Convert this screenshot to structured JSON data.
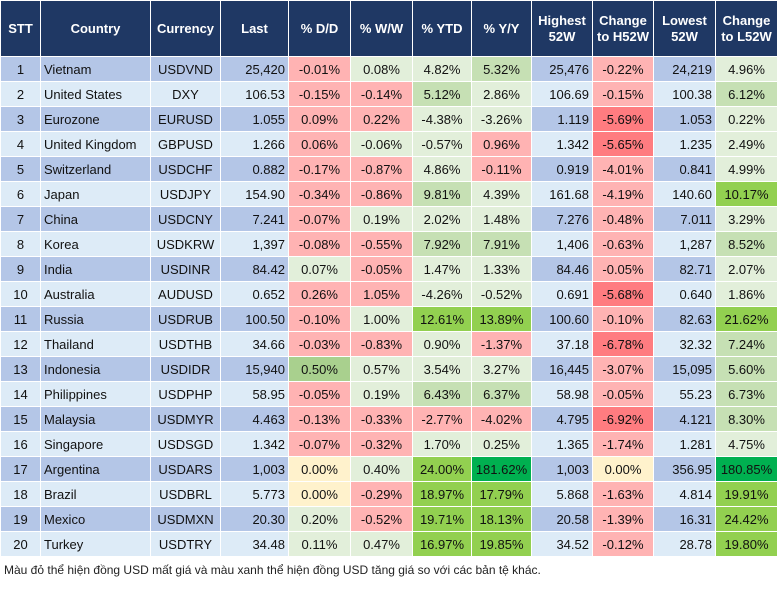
{
  "palette": {
    "odd": "#b4c6e7",
    "even": "#ddebf7",
    "header": "#1f3864",
    "lg": "#e2efda",
    "mg": "#c6e0b4",
    "g2": "#a9d08e",
    "sg": "#92d050",
    "dg": "#00b050",
    "r": "#ffb3b3",
    "dr": "#ff7c80",
    "y": "#fff2cc"
  },
  "chart_data": {
    "type": "table",
    "headers": [
      "STT",
      "Country",
      "Currency",
      "Last",
      "% D/D",
      "% W/W",
      "% YTD",
      "% Y/Y",
      "Highest 52W",
      "Change to H52W",
      "Lowest 52W",
      "Change to L52W"
    ],
    "rows": [
      {
        "stt": "1",
        "country": "Vietnam",
        "currency": "USDVND",
        "last": "25,420",
        "dd": [
          "-0.01%",
          "r"
        ],
        "ww": [
          "0.08%",
          "lg"
        ],
        "ytd": [
          "4.82%",
          "lg"
        ],
        "yy": [
          "5.32%",
          "mg"
        ],
        "high": "25,476",
        "h52": [
          "-0.22%",
          "r"
        ],
        "low": "24,219",
        "l52": [
          "4.96%",
          "lg"
        ]
      },
      {
        "stt": "2",
        "country": "United States",
        "currency": "DXY",
        "last": "106.53",
        "dd": [
          "-0.15%",
          "r"
        ],
        "ww": [
          "-0.14%",
          "r"
        ],
        "ytd": [
          "5.12%",
          "mg"
        ],
        "yy": [
          "2.86%",
          "lg"
        ],
        "high": "106.69",
        "h52": [
          "-0.15%",
          "r"
        ],
        "low": "100.38",
        "l52": [
          "6.12%",
          "mg"
        ]
      },
      {
        "stt": "3",
        "country": "Eurozone",
        "currency": "EURUSD",
        "last": "1.055",
        "dd": [
          "0.09%",
          "r"
        ],
        "ww": [
          "0.22%",
          "r"
        ],
        "ytd": [
          "-4.38%",
          "lg"
        ],
        "yy": [
          "-3.26%",
          "lg"
        ],
        "high": "1.119",
        "h52": [
          "-5.69%",
          "dr"
        ],
        "low": "1.053",
        "l52": [
          "0.22%",
          "lg"
        ]
      },
      {
        "stt": "4",
        "country": "United Kingdom",
        "currency": "GBPUSD",
        "last": "1.266",
        "dd": [
          "0.06%",
          "r"
        ],
        "ww": [
          "-0.06%",
          "lg"
        ],
        "ytd": [
          "-0.57%",
          "lg"
        ],
        "yy": [
          "0.96%",
          "r"
        ],
        "high": "1.342",
        "h52": [
          "-5.65%",
          "dr"
        ],
        "low": "1.235",
        "l52": [
          "2.49%",
          "lg"
        ]
      },
      {
        "stt": "5",
        "country": "Switzerland",
        "currency": "USDCHF",
        "last": "0.882",
        "dd": [
          "-0.17%",
          "r"
        ],
        "ww": [
          "-0.87%",
          "r"
        ],
        "ytd": [
          "4.86%",
          "lg"
        ],
        "yy": [
          "-0.11%",
          "r"
        ],
        "high": "0.919",
        "h52": [
          "-4.01%",
          "r"
        ],
        "low": "0.841",
        "l52": [
          "4.99%",
          "lg"
        ]
      },
      {
        "stt": "6",
        "country": "Japan",
        "currency": "USDJPY",
        "last": "154.90",
        "dd": [
          "-0.34%",
          "r"
        ],
        "ww": [
          "-0.86%",
          "r"
        ],
        "ytd": [
          "9.81%",
          "mg"
        ],
        "yy": [
          "4.39%",
          "lg"
        ],
        "high": "161.68",
        "h52": [
          "-4.19%",
          "r"
        ],
        "low": "140.60",
        "l52": [
          "10.17%",
          "sg"
        ]
      },
      {
        "stt": "7",
        "country": "China",
        "currency": "USDCNY",
        "last": "7.241",
        "dd": [
          "-0.07%",
          "r"
        ],
        "ww": [
          "0.19%",
          "lg"
        ],
        "ytd": [
          "2.02%",
          "lg"
        ],
        "yy": [
          "1.48%",
          "lg"
        ],
        "high": "7.276",
        "h52": [
          "-0.48%",
          "r"
        ],
        "low": "7.011",
        "l52": [
          "3.29%",
          "lg"
        ]
      },
      {
        "stt": "8",
        "country": "Korea",
        "currency": "USDKRW",
        "last": "1,397",
        "dd": [
          "-0.08%",
          "r"
        ],
        "ww": [
          "-0.55%",
          "r"
        ],
        "ytd": [
          "7.92%",
          "mg"
        ],
        "yy": [
          "7.91%",
          "mg"
        ],
        "high": "1,406",
        "h52": [
          "-0.63%",
          "r"
        ],
        "low": "1,287",
        "l52": [
          "8.52%",
          "mg"
        ]
      },
      {
        "stt": "9",
        "country": "India",
        "currency": "USDINR",
        "last": "84.42",
        "dd": [
          "0.07%",
          "lg"
        ],
        "ww": [
          "-0.05%",
          "r"
        ],
        "ytd": [
          "1.47%",
          "lg"
        ],
        "yy": [
          "1.33%",
          "lg"
        ],
        "high": "84.46",
        "h52": [
          "-0.05%",
          "r"
        ],
        "low": "82.71",
        "l52": [
          "2.07%",
          "lg"
        ]
      },
      {
        "stt": "10",
        "country": "Australia",
        "currency": "AUDUSD",
        "last": "0.652",
        "dd": [
          "0.26%",
          "r"
        ],
        "ww": [
          "1.05%",
          "r"
        ],
        "ytd": [
          "-4.26%",
          "lg"
        ],
        "yy": [
          "-0.52%",
          "lg"
        ],
        "high": "0.691",
        "h52": [
          "-5.68%",
          "dr"
        ],
        "low": "0.640",
        "l52": [
          "1.86%",
          "lg"
        ]
      },
      {
        "stt": "11",
        "country": "Russia",
        "currency": "USDRUB",
        "last": "100.50",
        "dd": [
          "-0.10%",
          "r"
        ],
        "ww": [
          "1.00%",
          "lg"
        ],
        "ytd": [
          "12.61%",
          "sg"
        ],
        "yy": [
          "13.89%",
          "sg"
        ],
        "high": "100.60",
        "h52": [
          "-0.10%",
          "r"
        ],
        "low": "82.63",
        "l52": [
          "21.62%",
          "sg"
        ]
      },
      {
        "stt": "12",
        "country": "Thailand",
        "currency": "USDTHB",
        "last": "34.66",
        "dd": [
          "-0.03%",
          "r"
        ],
        "ww": [
          "-0.83%",
          "r"
        ],
        "ytd": [
          "0.90%",
          "lg"
        ],
        "yy": [
          "-1.37%",
          "r"
        ],
        "high": "37.18",
        "h52": [
          "-6.78%",
          "dr"
        ],
        "low": "32.32",
        "l52": [
          "7.24%",
          "mg"
        ]
      },
      {
        "stt": "13",
        "country": "Indonesia",
        "currency": "USDIDR",
        "last": "15,940",
        "dd": [
          "0.50%",
          "g2"
        ],
        "ww": [
          "0.57%",
          "lg"
        ],
        "ytd": [
          "3.54%",
          "lg"
        ],
        "yy": [
          "3.27%",
          "lg"
        ],
        "high": "16,445",
        "h52": [
          "-3.07%",
          "r"
        ],
        "low": "15,095",
        "l52": [
          "5.60%",
          "mg"
        ]
      },
      {
        "stt": "14",
        "country": "Philippines",
        "currency": "USDPHP",
        "last": "58.95",
        "dd": [
          "-0.05%",
          "r"
        ],
        "ww": [
          "0.19%",
          "lg"
        ],
        "ytd": [
          "6.43%",
          "mg"
        ],
        "yy": [
          "6.37%",
          "mg"
        ],
        "high": "58.98",
        "h52": [
          "-0.05%",
          "r"
        ],
        "low": "55.23",
        "l52": [
          "6.73%",
          "mg"
        ]
      },
      {
        "stt": "15",
        "country": "Malaysia",
        "currency": "USDMYR",
        "last": "4.463",
        "dd": [
          "-0.13%",
          "r"
        ],
        "ww": [
          "-0.33%",
          "r"
        ],
        "ytd": [
          "-2.77%",
          "r"
        ],
        "yy": [
          "-4.02%",
          "r"
        ],
        "high": "4.795",
        "h52": [
          "-6.92%",
          "dr"
        ],
        "low": "4.121",
        "l52": [
          "8.30%",
          "mg"
        ]
      },
      {
        "stt": "16",
        "country": "Singapore",
        "currency": "USDSGD",
        "last": "1.342",
        "dd": [
          "-0.07%",
          "r"
        ],
        "ww": [
          "-0.32%",
          "r"
        ],
        "ytd": [
          "1.70%",
          "lg"
        ],
        "yy": [
          "0.25%",
          "lg"
        ],
        "high": "1.365",
        "h52": [
          "-1.74%",
          "r"
        ],
        "low": "1.281",
        "l52": [
          "4.75%",
          "lg"
        ]
      },
      {
        "stt": "17",
        "country": "Argentina",
        "currency": "USDARS",
        "last": "1,003",
        "dd": [
          "0.00%",
          "y"
        ],
        "ww": [
          "0.40%",
          "lg"
        ],
        "ytd": [
          "24.00%",
          "sg"
        ],
        "yy": [
          "181.62%",
          "dg"
        ],
        "high": "1,003",
        "h52": [
          "0.00%",
          "y"
        ],
        "low": "356.95",
        "l52": [
          "180.85%",
          "dg"
        ]
      },
      {
        "stt": "18",
        "country": "Brazil",
        "currency": "USDBRL",
        "last": "5.773",
        "dd": [
          "0.00%",
          "y"
        ],
        "ww": [
          "-0.29%",
          "r"
        ],
        "ytd": [
          "18.97%",
          "sg"
        ],
        "yy": [
          "17.79%",
          "sg"
        ],
        "high": "5.868",
        "h52": [
          "-1.63%",
          "r"
        ],
        "low": "4.814",
        "l52": [
          "19.91%",
          "sg"
        ]
      },
      {
        "stt": "19",
        "country": "Mexico",
        "currency": "USDMXN",
        "last": "20.30",
        "dd": [
          "0.20%",
          "lg"
        ],
        "ww": [
          "-0.52%",
          "r"
        ],
        "ytd": [
          "19.71%",
          "sg"
        ],
        "yy": [
          "18.13%",
          "sg"
        ],
        "high": "20.58",
        "h52": [
          "-1.39%",
          "r"
        ],
        "low": "16.31",
        "l52": [
          "24.42%",
          "sg"
        ]
      },
      {
        "stt": "20",
        "country": "Turkey",
        "currency": "USDTRY",
        "last": "34.48",
        "dd": [
          "0.11%",
          "lg"
        ],
        "ww": [
          "0.47%",
          "lg"
        ],
        "ytd": [
          "16.97%",
          "sg"
        ],
        "yy": [
          "19.85%",
          "sg"
        ],
        "high": "34.52",
        "h52": [
          "-0.12%",
          "r"
        ],
        "low": "28.78",
        "l52": [
          "19.80%",
          "sg"
        ]
      }
    ]
  },
  "footer": "Màu đỏ thể hiện đồng USD mất giá và màu xanh thể hiện đồng USD tăng giá so với các bản tệ khác."
}
